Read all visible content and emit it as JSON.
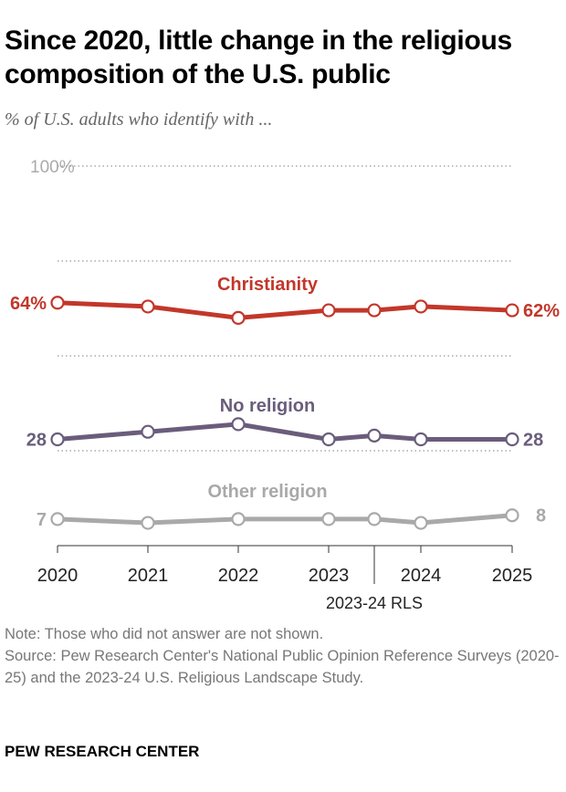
{
  "title": "Since 2020, little change in the religious composition of the U.S. public",
  "subtitle": "% of U.S. adults who identify with ...",
  "chart_data": {
    "type": "line",
    "x": [
      "2020",
      "2021",
      "2022",
      "2023",
      "2023-24 RLS",
      "2024",
      "2025"
    ],
    "tick_labels": [
      "2020",
      "2021",
      "2022",
      "2023",
      "2024",
      "2025"
    ],
    "extra_label": "2023-24 RLS",
    "ylim": [
      0,
      100
    ],
    "ytick_label": "100%",
    "gridlines": [
      25,
      50,
      75,
      100
    ],
    "series": [
      {
        "name": "Christianity",
        "color": "#c2372a",
        "values": [
          64,
          63,
          60,
          62,
          62,
          63,
          62
        ],
        "start_label": "64%",
        "end_label": "62%"
      },
      {
        "name": "No religion",
        "color": "#6a5d7b",
        "values": [
          28,
          30,
          32,
          28,
          29,
          28,
          28
        ],
        "start_label": "28",
        "end_label": "28"
      },
      {
        "name": "Other religion",
        "color": "#a9a9ab",
        "values": [
          7,
          6,
          7,
          7,
          7,
          6,
          8
        ],
        "start_label": "7",
        "end_label": "8"
      }
    ]
  },
  "notes": {
    "note": "Note: Those who did not answer are not shown.",
    "source": "Source: Pew Research Center's National Public Opinion Reference Surveys (2020-25) and the 2023-24 U.S. Religious Landscape Study."
  },
  "brand": "PEW RESEARCH CENTER"
}
